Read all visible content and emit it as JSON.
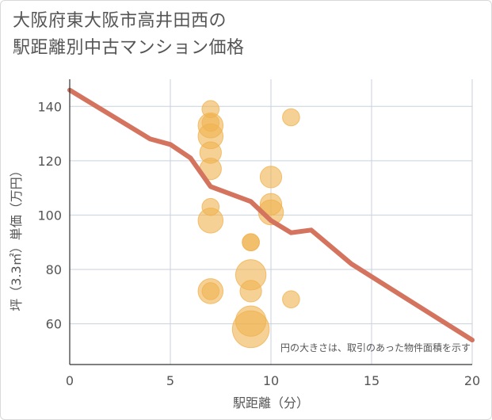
{
  "title_line1": "大阪府東大阪市高井田西の",
  "title_line2": "駅距離別中古マンション価格",
  "colors": {
    "bubble": "#f0b350",
    "line": "#d4735e",
    "grid": "#c8d2dc",
    "axis": "#333333"
  },
  "chart_data": {
    "type": "scatter",
    "title": "大阪府東大阪市高井田西の駅距離別中古マンション価格",
    "xlabel": "駅距離（分）",
    "ylabel": "坪（3.3㎡）単価（万円）",
    "xlim": [
      0,
      20
    ],
    "ylim": [
      45,
      150
    ],
    "xticks": [
      0,
      5,
      10,
      15,
      20
    ],
    "yticks": [
      60,
      80,
      100,
      120,
      140
    ],
    "annotation": "円の大きさは、取引のあった物件面積を示す",
    "bubbles": [
      {
        "x": 7,
        "y": 139,
        "size": 1
      },
      {
        "x": 7,
        "y": 134,
        "size": 1
      },
      {
        "x": 7,
        "y": 133,
        "size": 3
      },
      {
        "x": 7,
        "y": 129,
        "size": 3
      },
      {
        "x": 7,
        "y": 123,
        "size": 2
      },
      {
        "x": 7,
        "y": 117,
        "size": 2
      },
      {
        "x": 7,
        "y": 103,
        "size": 1
      },
      {
        "x": 7,
        "y": 98,
        "size": 3
      },
      {
        "x": 7,
        "y": 72,
        "size": 3
      },
      {
        "x": 7,
        "y": 72,
        "size": 1
      },
      {
        "x": 9,
        "y": 90,
        "size": 1
      },
      {
        "x": 9,
        "y": 90,
        "size": 1
      },
      {
        "x": 9,
        "y": 78,
        "size": 5
      },
      {
        "x": 9,
        "y": 72,
        "size": 2
      },
      {
        "x": 9,
        "y": 61,
        "size": 5
      },
      {
        "x": 9,
        "y": 58,
        "size": 8
      },
      {
        "x": 10,
        "y": 114,
        "size": 2
      },
      {
        "x": 10,
        "y": 104,
        "size": 2
      },
      {
        "x": 10,
        "y": 101,
        "size": 3
      },
      {
        "x": 11,
        "y": 136,
        "size": 1
      },
      {
        "x": 11,
        "y": 69,
        "size": 1
      }
    ],
    "trend_line": {
      "x": [
        0,
        4,
        5,
        6,
        7,
        9,
        10,
        11,
        12,
        14,
        20
      ],
      "y": [
        146,
        128,
        126,
        121,
        110.5,
        105,
        98,
        93.5,
        94.5,
        82,
        54
      ]
    }
  }
}
